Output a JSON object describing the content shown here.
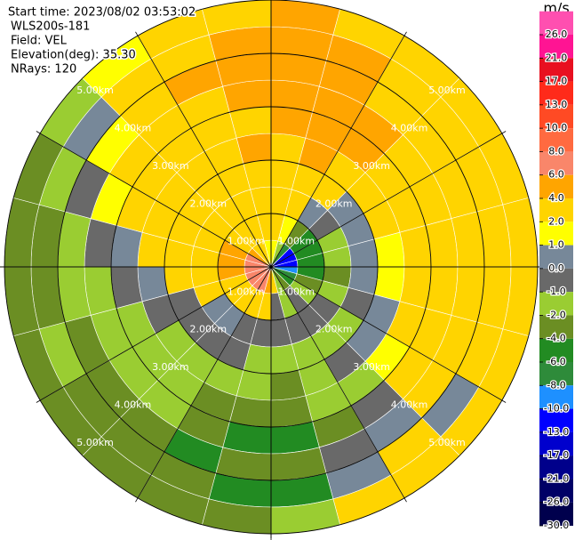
{
  "chart_data": {
    "type": "ppi",
    "info_lines": [
      "Start time: 2023/08/02 03:53:02",
      "WLS200s-181",
      "Field: VEL",
      "Elevation(deg): 35.30",
      "NRays: 120"
    ],
    "range_lim": [
      0,
      5
    ],
    "range_rings": [
      {
        "value": 1,
        "label": "1.00km"
      },
      {
        "value": 2,
        "label": "2.00km"
      },
      {
        "value": 3,
        "label": "3.00km"
      },
      {
        "value": 4,
        "label": "4.00km"
      },
      {
        "value": 5,
        "label": "5.00km"
      }
    ],
    "colorbar": {
      "label": "m/s",
      "ticks": [
        {
          "value": 26,
          "label": "26.0"
        },
        {
          "value": 21,
          "label": "21.0"
        },
        {
          "value": 17,
          "label": "17.0"
        },
        {
          "value": 13,
          "label": "13.0"
        },
        {
          "value": 10,
          "label": "10.0"
        },
        {
          "value": 8,
          "label": "8.0"
        },
        {
          "value": 6,
          "label": "6.0"
        },
        {
          "value": 4,
          "label": "4.0"
        },
        {
          "value": 2,
          "label": "2.0"
        },
        {
          "value": 1,
          "label": "1.0"
        },
        {
          "value": 0,
          "label": "0.0"
        },
        {
          "value": -1,
          "label": "-1.0"
        },
        {
          "value": -2,
          "label": "-2.0"
        },
        {
          "value": -4,
          "label": "-4.0"
        },
        {
          "value": -6,
          "label": "-6.0"
        },
        {
          "value": -8,
          "label": "-8.0"
        },
        {
          "value": -10,
          "label": "-10.0"
        },
        {
          "value": -13,
          "label": "-13.0"
        },
        {
          "value": -17,
          "label": "-17.0"
        },
        {
          "value": -21,
          "label": "-21.0"
        },
        {
          "value": -26,
          "label": "-26.0"
        },
        {
          "value": -30,
          "label": "-30.0"
        }
      ],
      "colors": [
        "#ff4fb0",
        "#ff1493",
        "#e81020",
        "#ff2a1a",
        "#ff4a24",
        "#ff6a40",
        "#f9866a",
        "#ffa500",
        "#ffd400",
        "#ffff00",
        "#778899",
        "#696969",
        "#9acd32",
        "#6b8e23",
        "#228b22",
        "#2e8b3a",
        "#1e90ff",
        "#0000ff",
        "#0000cd",
        "#00008b",
        "#000066",
        "#00004d"
      ]
    },
    "values": [
      [
        1,
        2,
        3,
        3,
        3,
        4,
        5,
        5,
        4,
        5
      ],
      [
        -2,
        1,
        3,
        3,
        4,
        5,
        5,
        4,
        5,
        3
      ],
      [
        -8,
        -4,
        0.5,
        2,
        3,
        4,
        5,
        3,
        3,
        2
      ],
      [
        -11,
        -5,
        -1,
        0.5,
        3,
        3,
        3,
        2,
        3,
        2
      ],
      [
        -11,
        -5,
        -1.5,
        0.5,
        2,
        3,
        2,
        3,
        2,
        3
      ],
      [
        -11,
        -5,
        -1.5,
        0.5,
        1.5,
        3,
        3,
        2,
        3,
        2
      ],
      [
        -9,
        -5,
        -3,
        0.5,
        1.5,
        2,
        3,
        2,
        3,
        2
      ],
      [
        -7,
        -3,
        -1.5,
        -0.5,
        0.5,
        2,
        2,
        3,
        3,
        3
      ],
      [
        -5,
        -1.5,
        -0.5,
        -1.5,
        0.5,
        1.5,
        2,
        3,
        0.5,
        3
      ],
      [
        -3,
        -0.5,
        -0.5,
        -1.5,
        -0.5,
        -1.5,
        -0.5,
        0.5,
        3,
        2
      ],
      [
        -1.5,
        -1.5,
        -0.5,
        -1.5,
        -1.5,
        -1.5,
        -3,
        -0.5,
        0.5,
        2
      ],
      [
        2,
        -0.5,
        -0.5,
        -1.5,
        -3,
        -3,
        -5,
        -3,
        -5,
        -1.5
      ],
      [
        5,
        3,
        -0.5,
        -1.5,
        -1.5,
        -3,
        -5,
        -3,
        -5,
        -3
      ],
      [
        7,
        3,
        -0.5,
        -0.5,
        -1.5,
        -3,
        -3,
        -5,
        -3,
        -3
      ],
      [
        7,
        3,
        0.5,
        -0.5,
        -1.5,
        -1.5,
        -1.5,
        -3,
        -3,
        -3
      ],
      [
        7,
        3,
        0.5,
        -0.5,
        -1.5,
        -1.5,
        -1.5,
        -3,
        -3,
        -3
      ],
      [
        7,
        3,
        3,
        -0.5,
        -0.5,
        -1.5,
        -1.5,
        -3,
        -1.5,
        -3
      ],
      [
        7,
        5,
        3,
        3,
        0.5,
        -0.5,
        -1.5,
        -1.5,
        -3,
        -3
      ],
      [
        7,
        5,
        3,
        3,
        3,
        0.5,
        -0.5,
        -1.5,
        -3,
        -3
      ],
      [
        7,
        5,
        3,
        3,
        3,
        3,
        1.5,
        -0.5,
        -1.5,
        -3
      ],
      [
        5,
        3,
        3,
        3,
        3,
        3,
        3,
        1.5,
        0.5,
        -1.5
      ],
      [
        3,
        3,
        3,
        3,
        3,
        3,
        3,
        3,
        3,
        1.5
      ],
      [
        2,
        3,
        3,
        3,
        3,
        3,
        3,
        5,
        3,
        3
      ],
      [
        1,
        3,
        3,
        3,
        5,
        3,
        5,
        5,
        5,
        3
      ]
    ]
  }
}
